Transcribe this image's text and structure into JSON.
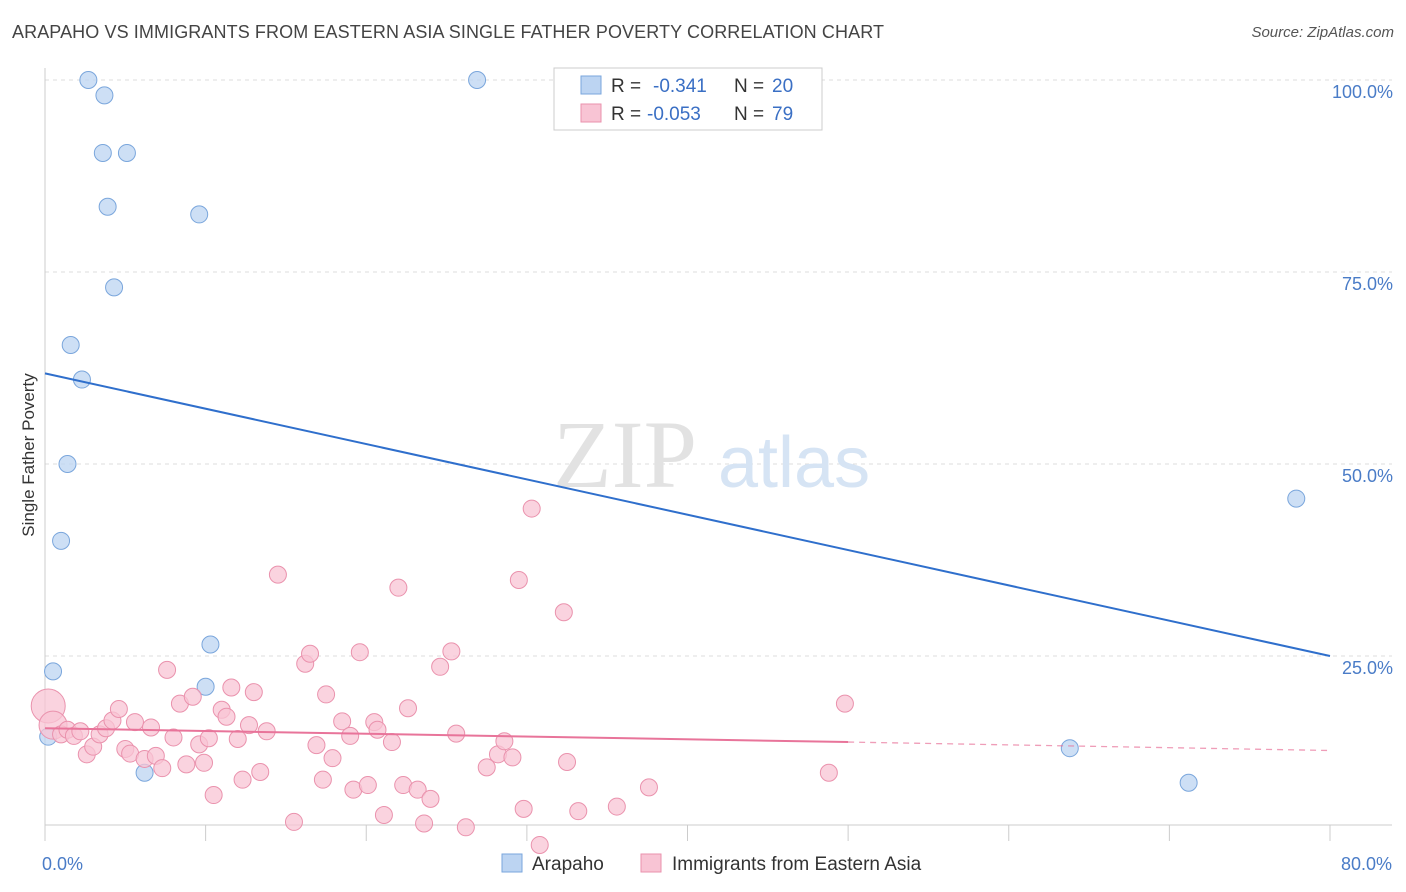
{
  "title": "ARAPAHO VS IMMIGRANTS FROM EASTERN ASIA SINGLE FATHER POVERTY CORRELATION CHART",
  "source": "Source: ZipAtlas.com",
  "watermark": {
    "zip": "ZIP",
    "atlas": "atlas"
  },
  "colors": {
    "blue_fill": "#bcd4f2",
    "blue_stroke": "#7aa6dc",
    "blue_line": "#2f6fcc",
    "pink_fill": "#f8c4d4",
    "pink_stroke": "#ea92ad",
    "pink_line": "#e8749a",
    "grid": "#dddddd",
    "tick_text": "#4a7cc7"
  },
  "chart_data": {
    "type": "scatter",
    "title": "ARAPAHO VS IMMIGRANTS FROM EASTERN ASIA SINGLE FATHER POVERTY CORRELATION CHART",
    "xlabel": "",
    "ylabel": "Single Father Poverty",
    "xlim": [
      0,
      80
    ],
    "ylim": [
      0,
      105
    ],
    "x_tick_labels": [
      {
        "value": 0,
        "label": "0.0%"
      },
      {
        "value": 80,
        "label": "80.0%"
      }
    ],
    "y_tick_labels": [
      {
        "value": 25,
        "label": "25.0%"
      },
      {
        "value": 50,
        "label": "50.0%"
      },
      {
        "value": 75,
        "label": "75.0%"
      },
      {
        "value": 100,
        "label": "100.0%"
      }
    ],
    "grid": true,
    "legend_position": "top-center",
    "legend": [
      {
        "series": "Arapaho",
        "r_label": "R =",
        "r": "-0.341",
        "n_label": "N =",
        "n": "20"
      },
      {
        "series": "Immigrants from Eastern Asia",
        "r_label": "R =",
        "r": "-0.053",
        "n_label": "N =",
        "n": "79"
      }
    ],
    "series": [
      {
        "name": "Arapaho",
        "color": "#bcd4f2",
        "points": [
          [
            2.7,
            100
          ],
          [
            26.9,
            100
          ],
          [
            3.7,
            98
          ],
          [
            3.6,
            90.5
          ],
          [
            5.1,
            90.5
          ],
          [
            3.9,
            83.5
          ],
          [
            9.6,
            82.5
          ],
          [
            4.3,
            73
          ],
          [
            1.6,
            65.5
          ],
          [
            2.3,
            61
          ],
          [
            1.4,
            50
          ],
          [
            1.0,
            40
          ],
          [
            10.3,
            26.5
          ],
          [
            0.5,
            23
          ],
          [
            10.0,
            21
          ],
          [
            0.2,
            14.5
          ],
          [
            6.2,
            9.8
          ],
          [
            63.8,
            13
          ],
          [
            71.2,
            8.5
          ],
          [
            77.9,
            45.5
          ]
        ],
        "trend": {
          "x": [
            0,
            80
          ],
          "y": [
            61.8,
            25
          ]
        }
      },
      {
        "name": "Immigrants from Eastern Asia",
        "color": "#f8c4d4",
        "points": [
          [
            0.2,
            18.5
          ],
          [
            0.5,
            16
          ],
          [
            1.0,
            14.8
          ],
          [
            1.4,
            15.4
          ],
          [
            1.8,
            14.6
          ],
          [
            2.2,
            15.2
          ],
          [
            2.6,
            12.2
          ],
          [
            3.0,
            13.2
          ],
          [
            3.4,
            14.8
          ],
          [
            3.8,
            15.6
          ],
          [
            4.2,
            16.6
          ],
          [
            4.6,
            18.1
          ],
          [
            5.0,
            12.9
          ],
          [
            5.3,
            12.3
          ],
          [
            5.6,
            16.4
          ],
          [
            6.2,
            11.6
          ],
          [
            6.6,
            15.7
          ],
          [
            6.9,
            12.0
          ],
          [
            7.3,
            10.4
          ],
          [
            7.6,
            23.2
          ],
          [
            8.0,
            14.4
          ],
          [
            8.4,
            18.8
          ],
          [
            8.8,
            10.9
          ],
          [
            9.2,
            19.7
          ],
          [
            9.6,
            13.5
          ],
          [
            9.9,
            11.1
          ],
          [
            10.2,
            14.3
          ],
          [
            10.5,
            6.9
          ],
          [
            11.0,
            18.0
          ],
          [
            11.3,
            17.1
          ],
          [
            11.6,
            20.9
          ],
          [
            12.0,
            14.2
          ],
          [
            12.3,
            8.9
          ],
          [
            12.7,
            16.0
          ],
          [
            13.0,
            20.3
          ],
          [
            13.4,
            9.9
          ],
          [
            13.8,
            15.2
          ],
          [
            14.5,
            35.6
          ],
          [
            15.5,
            3.4
          ],
          [
            16.2,
            24
          ],
          [
            16.5,
            25.3
          ],
          [
            16.9,
            13.4
          ],
          [
            17.3,
            8.9
          ],
          [
            17.5,
            20.0
          ],
          [
            17.9,
            11.7
          ],
          [
            18.5,
            16.5
          ],
          [
            19.0,
            14.6
          ],
          [
            19.2,
            7.6
          ],
          [
            19.6,
            25.5
          ],
          [
            20.1,
            8.2
          ],
          [
            20.5,
            16.4
          ],
          [
            20.7,
            15.4
          ],
          [
            21.1,
            4.3
          ],
          [
            21.6,
            13.8
          ],
          [
            22.0,
            33.9
          ],
          [
            22.3,
            8.2
          ],
          [
            22.6,
            18.2
          ],
          [
            23.2,
            7.6
          ],
          [
            23.6,
            3.2
          ],
          [
            24.0,
            6.4
          ],
          [
            24.6,
            23.6
          ],
          [
            25.3,
            25.6
          ],
          [
            25.6,
            14.9
          ],
          [
            26.2,
            2.7
          ],
          [
            27.5,
            10.5
          ],
          [
            28.2,
            12.2
          ],
          [
            28.6,
            13.9
          ],
          [
            29.1,
            11.8
          ],
          [
            29.5,
            34.9
          ],
          [
            29.8,
            5.1
          ],
          [
            30.3,
            44.2
          ],
          [
            30.8,
            0.4
          ],
          [
            32.3,
            30.7
          ],
          [
            32.5,
            11.2
          ],
          [
            33.2,
            4.8
          ],
          [
            35.6,
            5.4
          ],
          [
            37.6,
            7.9
          ],
          [
            48.8,
            9.8
          ],
          [
            49.8,
            18.8
          ]
        ],
        "trend": {
          "x": [
            0,
            50
          ],
          "y": [
            15.6,
            13.8
          ]
        },
        "trend_dashed": {
          "x": [
            50,
            80
          ],
          "y": [
            13.8,
            12.7
          ]
        }
      }
    ]
  }
}
